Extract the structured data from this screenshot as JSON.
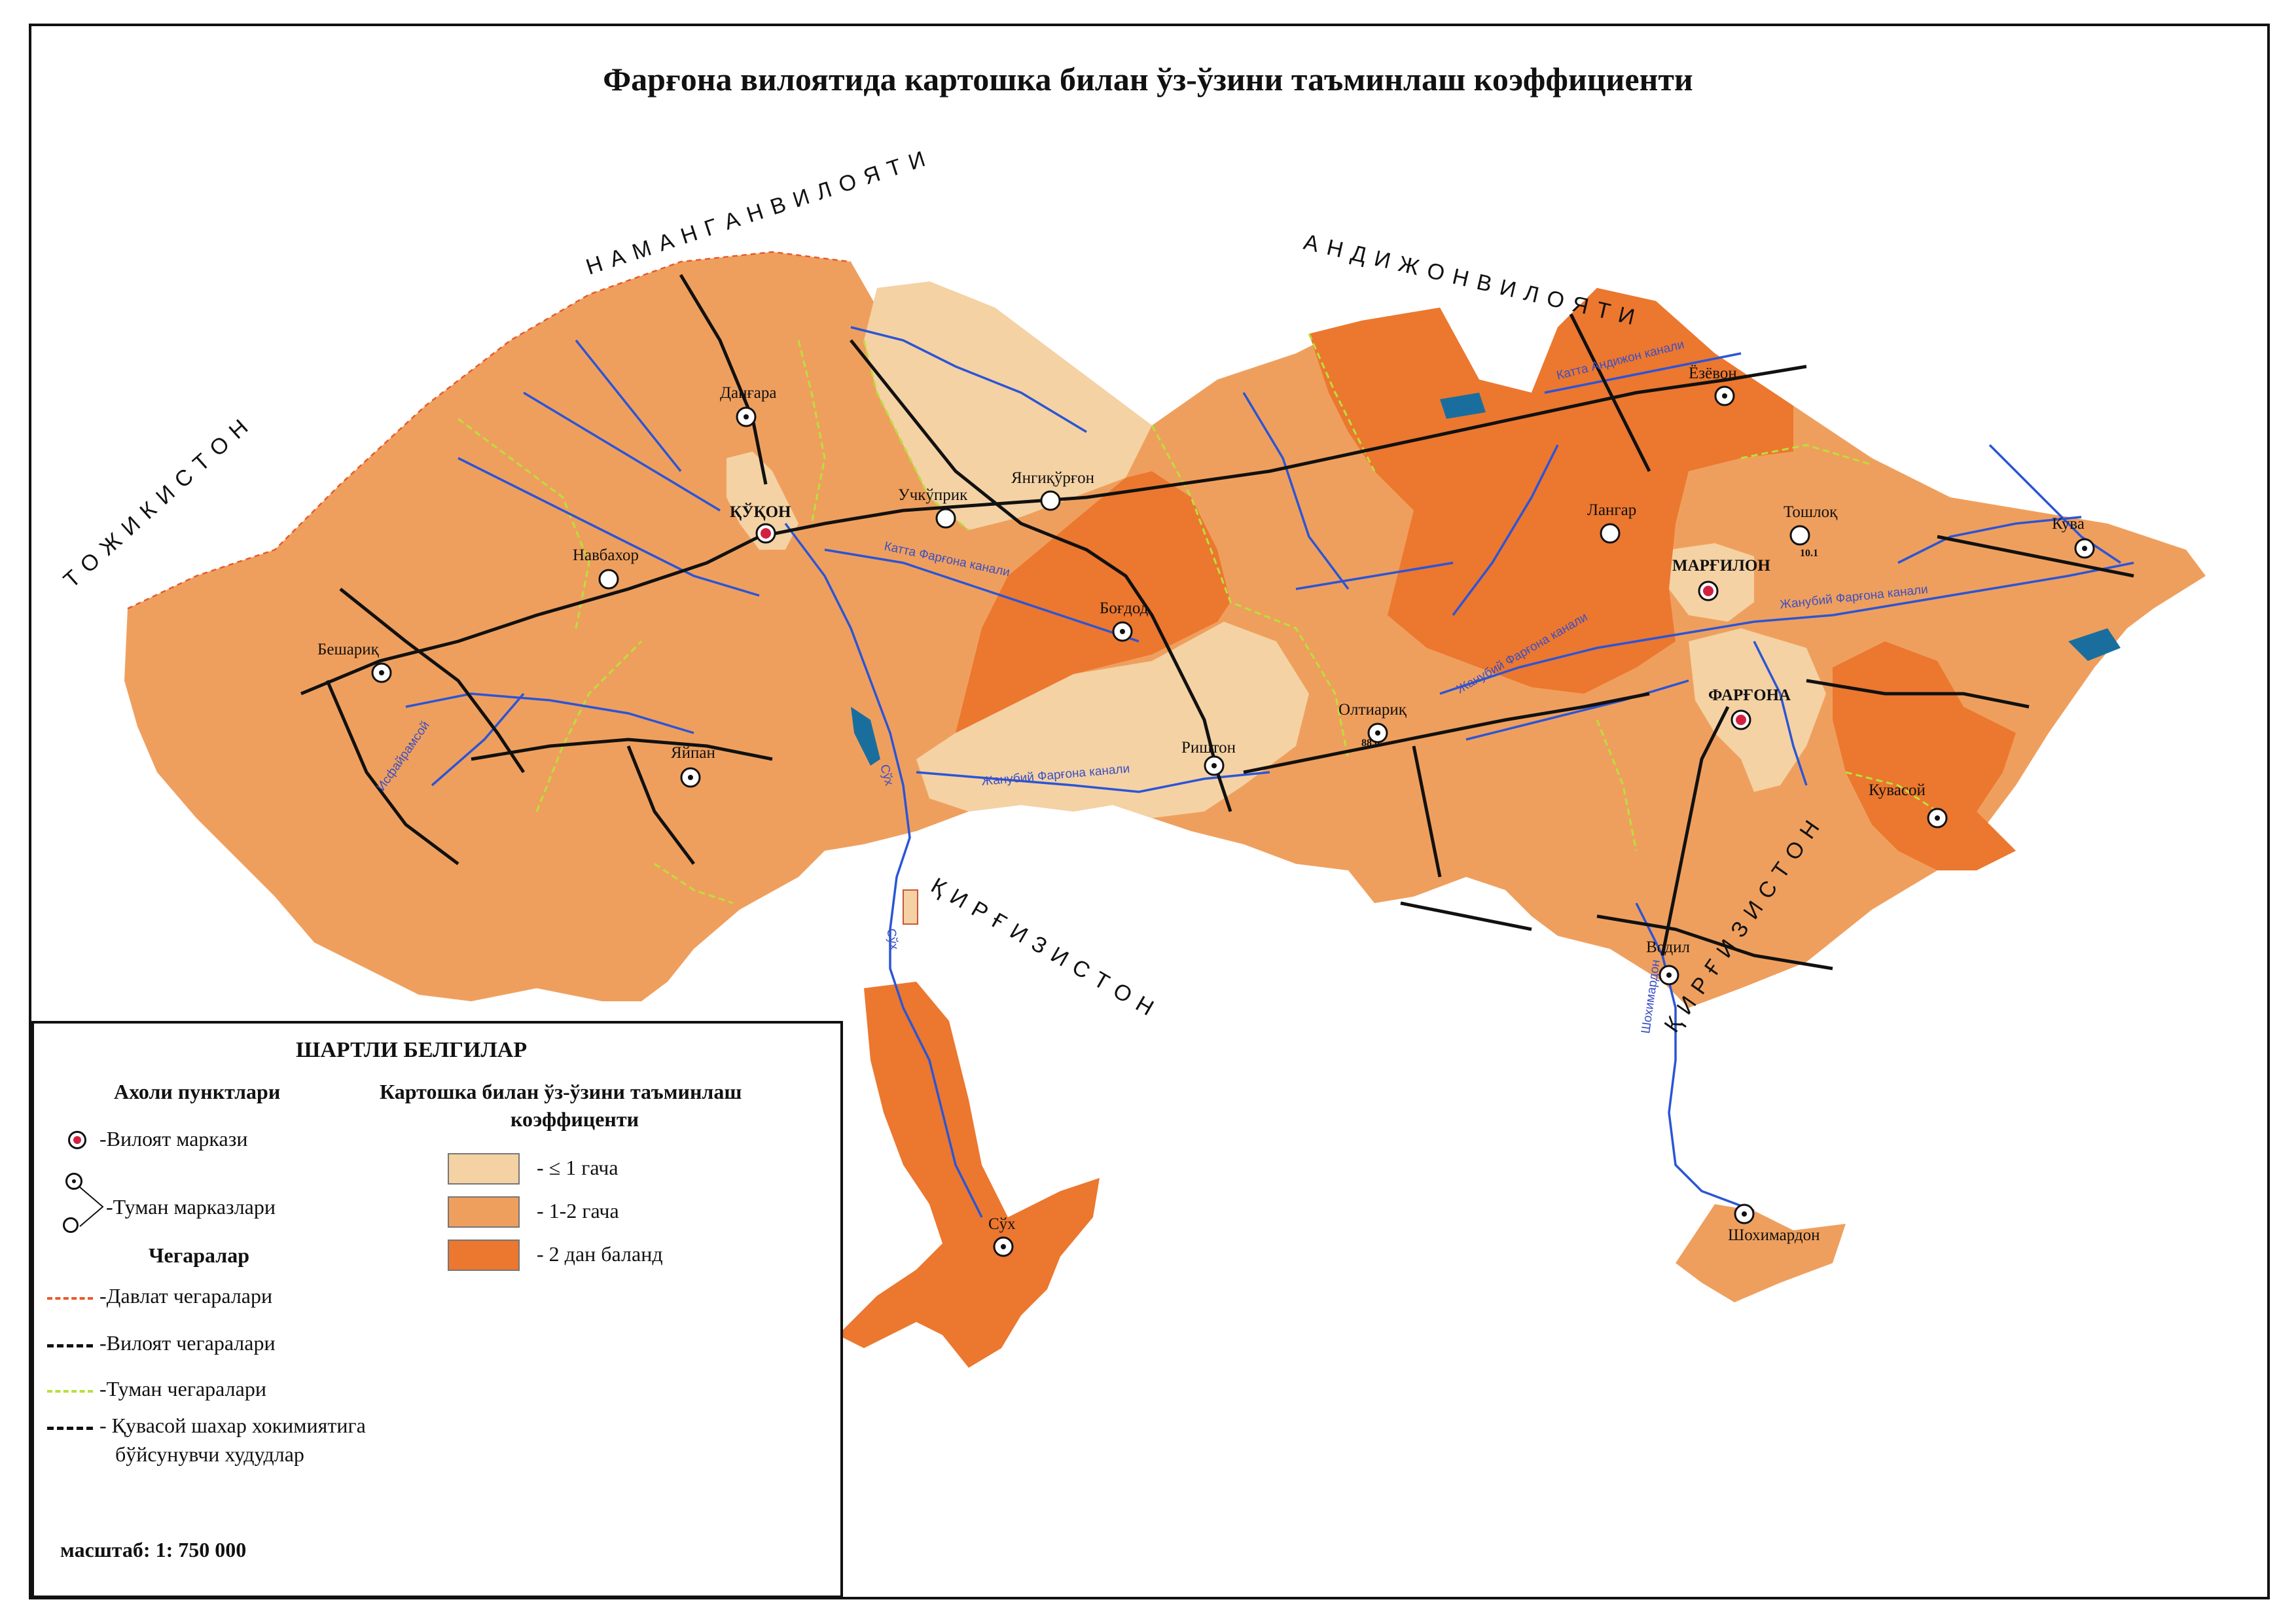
{
  "title": "Фарғона вилоятида картошка билан ўз-ўзини таъминлаш коэффициенти",
  "colors": {
    "low": "#f4d2a4",
    "mid": "#ef9f5d",
    "high": "#ec772f",
    "river": "#2b55d6",
    "district_border": "#b9e03a",
    "state_border": "#e85a2c",
    "road": "#111111",
    "city_center": "#d2213f"
  },
  "neighbors": {
    "kyrgyzstan": "Қ И Р Ғ И З И С Т О Н",
    "namangan": "Н А М А Н Г А Н   В И Л О Я Т И",
    "andijon": "А Н Д И Ж О Н   В И Л О Я Т И",
    "tojikiston": "Т О Ж И К И С Т О Н",
    "kyrgyz_east": "Қ И Р Ғ И З И С Т О Н"
  },
  "cities": {
    "kokon": "ҚЎҚОН",
    "dangara": "Данғара",
    "navbahor": "Навбахор",
    "beshariq": "Бешариқ",
    "yaypan": "Яйпан",
    "uchkuprik": "Учкўприк",
    "yangiqurgon": "Янгиқўрғон",
    "bogdod": "Боғдод",
    "rishton": "Риштон",
    "oltiariq": "Олтиариқ",
    "langar": "Лангар",
    "marg": "МАРҒИЛОН",
    "toshloq": "Тошлоқ",
    "ezevon": "Ёзёвон",
    "quva": "Кува",
    "fargona": "ФАРҒОНА",
    "quvasoy": "Кувасой",
    "vodil": "Водил",
    "sox": "Сўх",
    "shohimardon": "Шохимардон"
  },
  "canals": {
    "katta": "Катта Фарғона канали",
    "janubiy1": "Жанубий Фарғона канали",
    "janubiy2": "Жанубий Фарғона канали",
    "janubiy3": "Жанубий Фарғона канали",
    "katta_andijon": "Катта Андижон канали",
    "sox_river": "Сўх",
    "sox_river2": "Сўх",
    "shohimardon_river": "Шохимардон",
    "west_canal": "Исфайрамсой"
  },
  "numbers": {
    "n1": "10.1",
    "n2": "88.6"
  },
  "legend": {
    "heading": "ШАРТЛИ БЕЛГИЛАР",
    "settlements_heading": "Ахоли пунктлари",
    "region_center": "-Вилоят маркази",
    "district_centers": "-Туман марказлари",
    "borders_heading": "Чегаралар",
    "state_border": "-Давлат чегаралари",
    "region_border": "-Вилоят чегаралари",
    "district_border": "-Туман чегаралари",
    "quvasoy_border_1": "- Қувасой шахар хокимиятига",
    "quvasoy_border_2": "бўйсунувчи худудлар",
    "scale": "масштаб: 1: 750 000",
    "coef_heading_1": "Картошка билан ўз-ўзини таъминлаш",
    "coef_heading_2": "коэффиценти",
    "class_low": "- ≤ 1 гача",
    "class_mid": "- 1-2 гача",
    "class_high": "- 2 дан баланд"
  }
}
